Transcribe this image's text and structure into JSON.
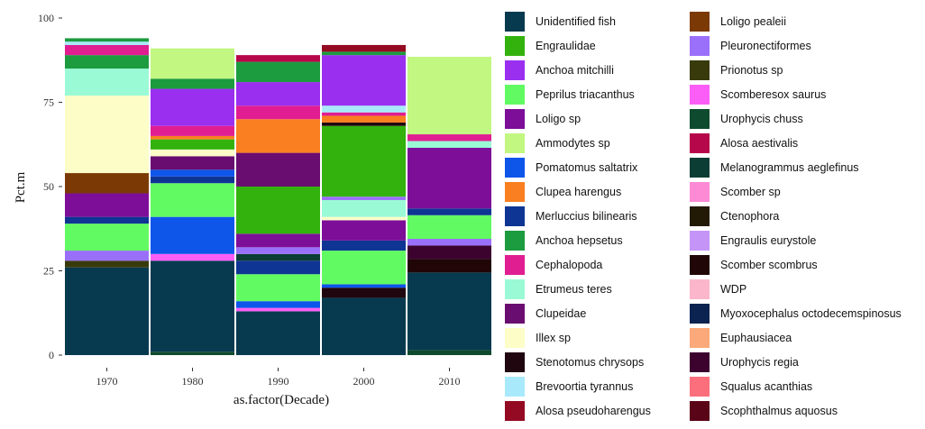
{
  "chart_data": {
    "type": "stacked-bar",
    "title": "",
    "xlabel": "as.factor(Decade)",
    "ylabel": "Pct.m",
    "categories": [
      "1970",
      "1980",
      "1990",
      "2000",
      "2010"
    ],
    "ylim": [
      0,
      100
    ],
    "yticks": [
      0,
      25,
      50,
      75,
      100
    ],
    "legend": [
      {
        "name": "Unidentified fish",
        "color": "#073a4f"
      },
      {
        "name": "Engraulidae",
        "color": "#33b20e"
      },
      {
        "name": "Anchoa mitchilli",
        "color": "#9a2ff0"
      },
      {
        "name": "Peprilus triacanthus",
        "color": "#62fa62"
      },
      {
        "name": "Loligo sp",
        "color": "#7c0e98"
      },
      {
        "name": "Ammodytes sp",
        "color": "#c2f781"
      },
      {
        "name": "Pomatomus saltatrix",
        "color": "#0e55ea"
      },
      {
        "name": "Clupea harengus",
        "color": "#fa7f20"
      },
      {
        "name": "Merluccius bilinearis",
        "color": "#0e3593"
      },
      {
        "name": "Anchoa hepsetus",
        "color": "#1c9b3f"
      },
      {
        "name": "Cephalopoda",
        "color": "#e01e91"
      },
      {
        "name": "Etrumeus teres",
        "color": "#9afad6"
      },
      {
        "name": "Clupeidae",
        "color": "#6a0d70"
      },
      {
        "name": "Illex sp",
        "color": "#fdfdc8"
      },
      {
        "name": "Stenotomus chrysops",
        "color": "#20060f"
      },
      {
        "name": "Brevoortia tyrannus",
        "color": "#a8eafb"
      },
      {
        "name": "Alosa pseudoharengus",
        "color": "#940a22"
      },
      {
        "name": "Loligo pealeii",
        "color": "#7b3a05"
      },
      {
        "name": "Pleuronectiformes",
        "color": "#9a70fa"
      },
      {
        "name": "Prionotus sp",
        "color": "#383a0c"
      },
      {
        "name": "Scomberesox saurus",
        "color": "#fb5ef7"
      },
      {
        "name": "Urophycis chuss",
        "color": "#0e4a2e"
      },
      {
        "name": "Alosa aestivalis",
        "color": "#b6074a"
      },
      {
        "name": "Melanogrammus aeglefinus",
        "color": "#0b3d35"
      },
      {
        "name": "Scomber sp",
        "color": "#fc8ad5"
      },
      {
        "name": "Ctenophora",
        "color": "#231a06"
      },
      {
        "name": "Engraulis eurystole",
        "color": "#c594f7"
      },
      {
        "name": "Scomber scombrus",
        "color": "#200606"
      },
      {
        "name": "WDP",
        "color": "#fcb6cb"
      },
      {
        "name": "Myoxocephalus octodecemspinosus",
        "color": "#0a2350"
      },
      {
        "name": "Euphausiacea",
        "color": "#fba97a"
      },
      {
        "name": "Urophycis regia",
        "color": "#3c032f"
      },
      {
        "name": "Squalus acanthias",
        "color": "#fa6f7b"
      },
      {
        "name": "Scophthalmus aquosus",
        "color": "#5a0418"
      }
    ],
    "stacks": {
      "1970": [
        {
          "name": "Unidentified fish",
          "value": 26
        },
        {
          "name": "Prionotus sp",
          "value": 2
        },
        {
          "name": "Pleuronectiformes",
          "value": 3
        },
        {
          "name": "Peprilus triacanthus",
          "value": 8
        },
        {
          "name": "Merluccius bilinearis",
          "value": 2
        },
        {
          "name": "Loligo sp",
          "value": 7
        },
        {
          "name": "Loligo pealeii",
          "value": 6
        },
        {
          "name": "Illex sp",
          "value": 23
        },
        {
          "name": "Etrumeus teres",
          "value": 8
        },
        {
          "name": "Anchoa hepsetus",
          "value": 4
        },
        {
          "name": "Cephalopoda",
          "value": 3
        },
        {
          "name": "Brevoortia tyrannus",
          "value": 1
        },
        {
          "name": "Anchoa hepsetus",
          "value": 1
        }
      ],
      "1980": [
        {
          "name": "Urophycis chuss",
          "value": 1
        },
        {
          "name": "Unidentified fish",
          "value": 27
        },
        {
          "name": "Scomberesox saurus",
          "value": 2
        },
        {
          "name": "Pomatomus saltatrix",
          "value": 11
        },
        {
          "name": "Peprilus triacanthus",
          "value": 10
        },
        {
          "name": "Merluccius bilinearis",
          "value": 2
        },
        {
          "name": "Pomatomus saltatrix",
          "value": 2
        },
        {
          "name": "Clupeidae",
          "value": 4
        },
        {
          "name": "Illex sp",
          "value": 2
        },
        {
          "name": "Engraulidae",
          "value": 3
        },
        {
          "name": "Clupea harengus",
          "value": 1
        },
        {
          "name": "Cephalopoda",
          "value": 3
        },
        {
          "name": "Anchoa mitchilli",
          "value": 11
        },
        {
          "name": "Anchoa hepsetus",
          "value": 3
        },
        {
          "name": "Ammodytes sp",
          "value": 9
        }
      ],
      "1990": [
        {
          "name": "Unidentified fish",
          "value": 13
        },
        {
          "name": "Scomberesox saurus",
          "value": 1
        },
        {
          "name": "Pomatomus saltatrix",
          "value": 2
        },
        {
          "name": "Peprilus triacanthus",
          "value": 8
        },
        {
          "name": "Merluccius bilinearis",
          "value": 4
        },
        {
          "name": "Melanogrammus aeglefinus",
          "value": 2
        },
        {
          "name": "Pleuronectiformes",
          "value": 2
        },
        {
          "name": "Loligo sp",
          "value": 4
        },
        {
          "name": "Engraulidae",
          "value": 14
        },
        {
          "name": "Clupeidae",
          "value": 10
        },
        {
          "name": "Clupea harengus",
          "value": 10
        },
        {
          "name": "Cephalopoda",
          "value": 4
        },
        {
          "name": "Anchoa mitchilli",
          "value": 7
        },
        {
          "name": "Anchoa hepsetus",
          "value": 6
        },
        {
          "name": "Alosa aestivalis",
          "value": 2
        }
      ],
      "2000": [
        {
          "name": "Unidentified fish",
          "value": 17
        },
        {
          "name": "Stenotomus chrysops",
          "value": 3
        },
        {
          "name": "Pomatomus saltatrix",
          "value": 1
        },
        {
          "name": "Peprilus triacanthus",
          "value": 10
        },
        {
          "name": "Merluccius bilinearis",
          "value": 3
        },
        {
          "name": "Loligo sp",
          "value": 6
        },
        {
          "name": "Illex sp",
          "value": 1
        },
        {
          "name": "Etrumeus teres",
          "value": 5
        },
        {
          "name": "Pleuronectiformes",
          "value": 1
        },
        {
          "name": "Engraulidae",
          "value": 21
        },
        {
          "name": "Stenotomus chrysops",
          "value": 1
        },
        {
          "name": "Clupea harengus",
          "value": 2
        },
        {
          "name": "Cephalopoda",
          "value": 1
        },
        {
          "name": "Brevoortia tyrannus",
          "value": 2
        },
        {
          "name": "Anchoa mitchilli",
          "value": 15
        },
        {
          "name": "Anchoa hepsetus",
          "value": 1
        },
        {
          "name": "Alosa pseudoharengus",
          "value": 2
        }
      ],
      "2010": [
        {
          "name": "Urophycis chuss",
          "value": 1.5
        },
        {
          "name": "Unidentified fish",
          "value": 23
        },
        {
          "name": "Scomber scombrus",
          "value": 4
        },
        {
          "name": "Urophycis regia",
          "value": 4
        },
        {
          "name": "Pleuronectiformes",
          "value": 2
        },
        {
          "name": "Peprilus triacanthus",
          "value": 7
        },
        {
          "name": "Merluccius bilinearis",
          "value": 2
        },
        {
          "name": "Loligo sp",
          "value": 18
        },
        {
          "name": "Etrumeus teres",
          "value": 2
        },
        {
          "name": "Cephalopoda",
          "value": 2
        },
        {
          "name": "Ammodytes sp",
          "value": 23
        }
      ]
    }
  }
}
